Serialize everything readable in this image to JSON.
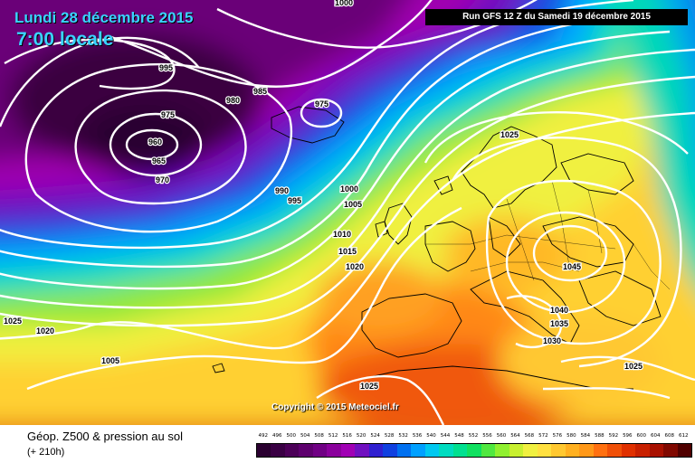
{
  "header": {
    "date": "Lundi 28 décembre 2015",
    "time": "7:00 locale",
    "run": "Run GFS 12 Z du Samedi 19 décembre 2015"
  },
  "map": {
    "copyright": "Copyright © 2015 Meteociel.fr",
    "isobar_labels": [
      {
        "text": "1000"
      },
      {
        "text": "995"
      },
      {
        "text": "985"
      },
      {
        "text": "980"
      },
      {
        "text": "975"
      },
      {
        "text": "975"
      },
      {
        "text": "960"
      },
      {
        "text": "965"
      },
      {
        "text": "970"
      },
      {
        "text": "990"
      },
      {
        "text": "995"
      },
      {
        "text": "1000"
      },
      {
        "text": "1005"
      },
      {
        "text": "1010"
      },
      {
        "text": "1015"
      },
      {
        "text": "1020"
      },
      {
        "text": "1025"
      },
      {
        "text": "1045"
      },
      {
        "text": "1040"
      },
      {
        "text": "1035"
      },
      {
        "text": "1030"
      },
      {
        "text": "1025"
      },
      {
        "text": "1025"
      },
      {
        "text": "1020"
      },
      {
        "text": "1005"
      },
      {
        "text": "1025"
      }
    ]
  },
  "footer": {
    "title": "Géop. Z500 & pression au sol",
    "subtitle": "(+ 210h)",
    "scale_values": [
      "492",
      "496",
      "500",
      "504",
      "508",
      "512",
      "516",
      "520",
      "524",
      "528",
      "532",
      "536",
      "540",
      "544",
      "548",
      "552",
      "556",
      "560",
      "564",
      "568",
      "572",
      "576",
      "580",
      "584",
      "588",
      "592",
      "596",
      "600",
      "604",
      "608",
      "612"
    ],
    "scale_colors": [
      "#2a0030",
      "#3a0044",
      "#4c0058",
      "#5e006e",
      "#700084",
      "#8a009c",
      "#a000b4",
      "#7010c0",
      "#3020d0",
      "#1040e0",
      "#0070f0",
      "#00a0ff",
      "#00c8f0",
      "#00dcc0",
      "#00e090",
      "#10e060",
      "#50e840",
      "#90f030",
      "#c8f030",
      "#f0f040",
      "#ffe040",
      "#ffc830",
      "#ffb020",
      "#ff9818",
      "#ff7010",
      "#f05008",
      "#e03000",
      "#c82000",
      "#a81000",
      "#800800",
      "#500000"
    ]
  }
}
